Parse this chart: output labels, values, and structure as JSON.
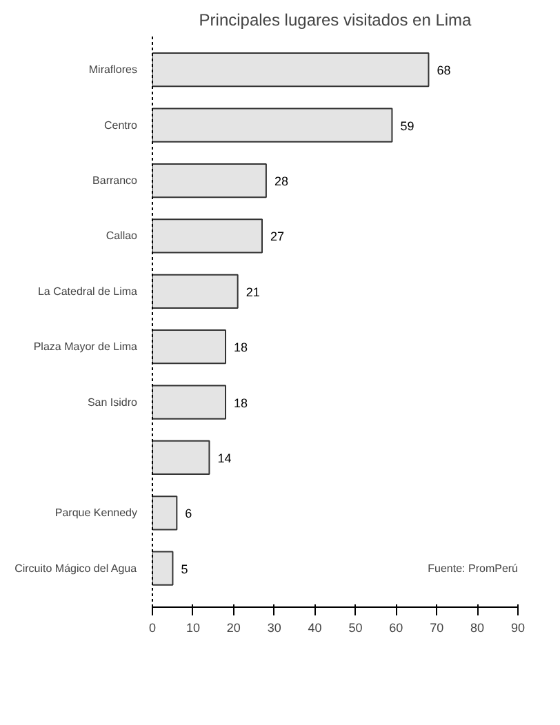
{
  "chart_data": {
    "type": "bar",
    "orientation": "horizontal",
    "title": "Principales lugares visitados en Lima",
    "categories": [
      "Miraflores",
      "Centro",
      "Barranco",
      "Callao",
      "La Catedral de Lima",
      "Plaza Mayor de Lima",
      "San Isidro",
      null,
      "Parque Kennedy",
      "Circuito Mágico del Agua"
    ],
    "values": [
      68,
      59,
      28,
      27,
      21,
      18,
      18,
      14,
      6,
      5
    ],
    "color": "#e4e4e4",
    "data_labels": true,
    "xlim": [
      0,
      90
    ],
    "xticks": [
      0,
      10,
      20,
      30,
      40,
      50,
      60,
      70,
      80,
      90
    ],
    "grid": false,
    "annotations": [
      "Fuente: PromPerú"
    ]
  }
}
